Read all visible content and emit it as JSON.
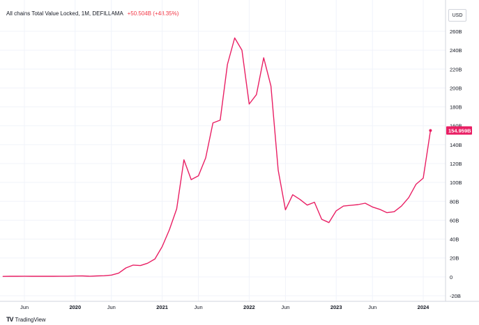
{
  "legend": {
    "title": "All chains Total Value Locked, 1M, DEFILLAMA",
    "change": "+50.504B (+48.35%)"
  },
  "currency": "USD",
  "brand": {
    "logo": "TV",
    "name": "TradingView"
  },
  "colors": {
    "line": "#e91e63",
    "last_label_bg": "#e91e63",
    "grid": "#f0f3fa",
    "axis_line": "#d1d4dc"
  },
  "chart_data": {
    "type": "line",
    "title": "All chains Total Value Locked, 1M, DEFILLAMA",
    "xlabel": "",
    "ylabel": "",
    "x_ticks": [
      {
        "label": "Jun",
        "date": "2019-06",
        "bold": false
      },
      {
        "label": "2020",
        "date": "2020-01",
        "bold": true
      },
      {
        "label": "Jun",
        "date": "2020-06",
        "bold": false
      },
      {
        "label": "2021",
        "date": "2021-01",
        "bold": true
      },
      {
        "label": "Jun",
        "date": "2021-06",
        "bold": false
      },
      {
        "label": "2022",
        "date": "2022-01",
        "bold": true
      },
      {
        "label": "Jun",
        "date": "2022-06",
        "bold": false
      },
      {
        "label": "2023",
        "date": "2023-01",
        "bold": true
      },
      {
        "label": "Jun",
        "date": "2023-06",
        "bold": false
      },
      {
        "label": "2024",
        "date": "2024-01",
        "bold": true
      }
    ],
    "y_ticks": [
      "260B",
      "240B",
      "220B",
      "200B",
      "180B",
      "160B",
      "140B",
      "120B",
      "100B",
      "80B",
      "60B",
      "40B",
      "20B",
      "0",
      "-20B"
    ],
    "ylim": [
      -20,
      260
    ],
    "y_unit": "B USD",
    "last_value_label": "154.959B",
    "series": [
      {
        "values": [
          [
            "2019-03",
            0.5
          ],
          [
            "2019-04",
            0.6
          ],
          [
            "2019-05",
            0.6
          ],
          [
            "2019-06",
            0.7
          ],
          [
            "2019-07",
            0.6
          ],
          [
            "2019-08",
            0.6
          ],
          [
            "2019-09",
            0.6
          ],
          [
            "2019-10",
            0.6
          ],
          [
            "2019-11",
            0.7
          ],
          [
            "2019-12",
            0.7
          ],
          [
            "2020-01",
            0.9
          ],
          [
            "2020-02",
            1.0
          ],
          [
            "2020-03",
            0.7
          ],
          [
            "2020-04",
            1.0
          ],
          [
            "2020-05",
            1.2
          ],
          [
            "2020-06",
            1.9
          ],
          [
            "2020-07",
            4.0
          ],
          [
            "2020-08",
            9.5
          ],
          [
            "2020-09",
            12.5
          ],
          [
            "2020-10",
            12.0
          ],
          [
            "2020-11",
            14.5
          ],
          [
            "2020-12",
            19.0
          ],
          [
            "2021-01",
            32.0
          ],
          [
            "2021-02",
            50.0
          ],
          [
            "2021-03",
            72.0
          ],
          [
            "2021-04",
            124.0
          ],
          [
            "2021-05",
            103.0
          ],
          [
            "2021-06",
            107.0
          ],
          [
            "2021-07",
            126.0
          ],
          [
            "2021-08",
            163.0
          ],
          [
            "2021-09",
            166.0
          ],
          [
            "2021-10",
            225.0
          ],
          [
            "2021-11",
            253.0
          ],
          [
            "2021-12",
            240.0
          ],
          [
            "2022-01",
            183.0
          ],
          [
            "2022-02",
            193.0
          ],
          [
            "2022-03",
            232.0
          ],
          [
            "2022-04",
            202.0
          ],
          [
            "2022-05",
            113.0
          ],
          [
            "2022-06",
            71.0
          ],
          [
            "2022-07",
            87.0
          ],
          [
            "2022-08",
            82.0
          ],
          [
            "2022-09",
            76.0
          ],
          [
            "2022-10",
            79.0
          ],
          [
            "2022-11",
            61.0
          ],
          [
            "2022-12",
            57.5
          ],
          [
            "2023-01",
            70.0
          ],
          [
            "2023-02",
            75.0
          ],
          [
            "2023-04",
            76.5
          ],
          [
            "2023-05",
            78.0
          ],
          [
            "2023-06",
            74.0
          ],
          [
            "2023-07",
            71.5
          ],
          [
            "2023-08",
            68.0
          ],
          [
            "2023-09",
            69.0
          ],
          [
            "2023-10",
            75.0
          ],
          [
            "2023-11",
            84.0
          ],
          [
            "2023-12",
            98.0
          ],
          [
            "2024-01",
            104.5
          ],
          [
            "2024-02",
            154.959
          ]
        ]
      }
    ]
  }
}
